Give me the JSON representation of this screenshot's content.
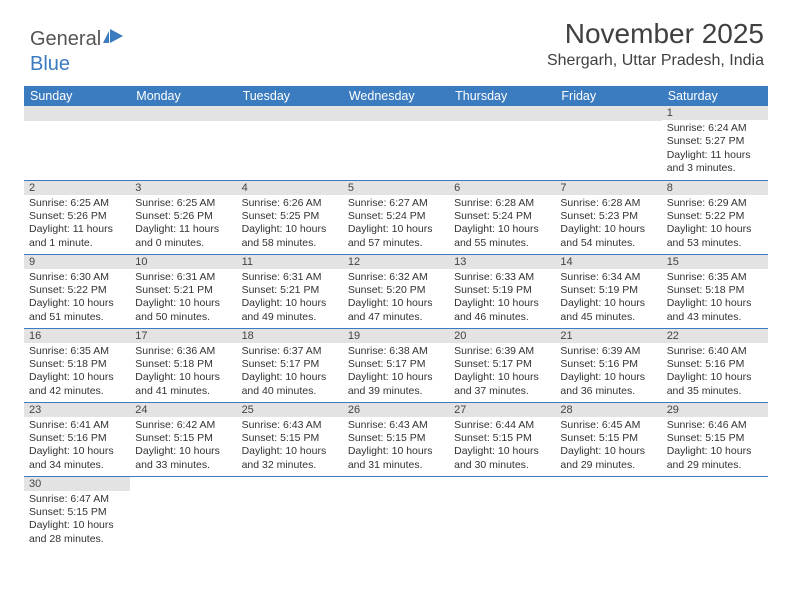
{
  "logo": {
    "text1": "General",
    "text2": "Blue"
  },
  "title": "November 2025",
  "location": "Shergarh, Uttar Pradesh, India",
  "day_header_bg": "#3b7bbf",
  "days": [
    "Sunday",
    "Monday",
    "Tuesday",
    "Wednesday",
    "Thursday",
    "Friday",
    "Saturday"
  ],
  "weeks": [
    [
      null,
      null,
      null,
      null,
      null,
      null,
      {
        "n": "1",
        "sr": "6:24 AM",
        "ss": "5:27 PM",
        "dl": "11 hours and 3 minutes."
      }
    ],
    [
      {
        "n": "2",
        "sr": "6:25 AM",
        "ss": "5:26 PM",
        "dl": "11 hours and 1 minute."
      },
      {
        "n": "3",
        "sr": "6:25 AM",
        "ss": "5:26 PM",
        "dl": "11 hours and 0 minutes."
      },
      {
        "n": "4",
        "sr": "6:26 AM",
        "ss": "5:25 PM",
        "dl": "10 hours and 58 minutes."
      },
      {
        "n": "5",
        "sr": "6:27 AM",
        "ss": "5:24 PM",
        "dl": "10 hours and 57 minutes."
      },
      {
        "n": "6",
        "sr": "6:28 AM",
        "ss": "5:24 PM",
        "dl": "10 hours and 55 minutes."
      },
      {
        "n": "7",
        "sr": "6:28 AM",
        "ss": "5:23 PM",
        "dl": "10 hours and 54 minutes."
      },
      {
        "n": "8",
        "sr": "6:29 AM",
        "ss": "5:22 PM",
        "dl": "10 hours and 53 minutes."
      }
    ],
    [
      {
        "n": "9",
        "sr": "6:30 AM",
        "ss": "5:22 PM",
        "dl": "10 hours and 51 minutes."
      },
      {
        "n": "10",
        "sr": "6:31 AM",
        "ss": "5:21 PM",
        "dl": "10 hours and 50 minutes."
      },
      {
        "n": "11",
        "sr": "6:31 AM",
        "ss": "5:21 PM",
        "dl": "10 hours and 49 minutes."
      },
      {
        "n": "12",
        "sr": "6:32 AM",
        "ss": "5:20 PM",
        "dl": "10 hours and 47 minutes."
      },
      {
        "n": "13",
        "sr": "6:33 AM",
        "ss": "5:19 PM",
        "dl": "10 hours and 46 minutes."
      },
      {
        "n": "14",
        "sr": "6:34 AM",
        "ss": "5:19 PM",
        "dl": "10 hours and 45 minutes."
      },
      {
        "n": "15",
        "sr": "6:35 AM",
        "ss": "5:18 PM",
        "dl": "10 hours and 43 minutes."
      }
    ],
    [
      {
        "n": "16",
        "sr": "6:35 AM",
        "ss": "5:18 PM",
        "dl": "10 hours and 42 minutes."
      },
      {
        "n": "17",
        "sr": "6:36 AM",
        "ss": "5:18 PM",
        "dl": "10 hours and 41 minutes."
      },
      {
        "n": "18",
        "sr": "6:37 AM",
        "ss": "5:17 PM",
        "dl": "10 hours and 40 minutes."
      },
      {
        "n": "19",
        "sr": "6:38 AM",
        "ss": "5:17 PM",
        "dl": "10 hours and 39 minutes."
      },
      {
        "n": "20",
        "sr": "6:39 AM",
        "ss": "5:17 PM",
        "dl": "10 hours and 37 minutes."
      },
      {
        "n": "21",
        "sr": "6:39 AM",
        "ss": "5:16 PM",
        "dl": "10 hours and 36 minutes."
      },
      {
        "n": "22",
        "sr": "6:40 AM",
        "ss": "5:16 PM",
        "dl": "10 hours and 35 minutes."
      }
    ],
    [
      {
        "n": "23",
        "sr": "6:41 AM",
        "ss": "5:16 PM",
        "dl": "10 hours and 34 minutes."
      },
      {
        "n": "24",
        "sr": "6:42 AM",
        "ss": "5:15 PM",
        "dl": "10 hours and 33 minutes."
      },
      {
        "n": "25",
        "sr": "6:43 AM",
        "ss": "5:15 PM",
        "dl": "10 hours and 32 minutes."
      },
      {
        "n": "26",
        "sr": "6:43 AM",
        "ss": "5:15 PM",
        "dl": "10 hours and 31 minutes."
      },
      {
        "n": "27",
        "sr": "6:44 AM",
        "ss": "5:15 PM",
        "dl": "10 hours and 30 minutes."
      },
      {
        "n": "28",
        "sr": "6:45 AM",
        "ss": "5:15 PM",
        "dl": "10 hours and 29 minutes."
      },
      {
        "n": "29",
        "sr": "6:46 AM",
        "ss": "5:15 PM",
        "dl": "10 hours and 29 minutes."
      }
    ],
    [
      {
        "n": "30",
        "sr": "6:47 AM",
        "ss": "5:15 PM",
        "dl": "10 hours and 28 minutes."
      },
      null,
      null,
      null,
      null,
      null,
      null
    ]
  ],
  "labels": {
    "sunrise": "Sunrise:",
    "sunset": "Sunset:",
    "daylight": "Daylight:"
  }
}
